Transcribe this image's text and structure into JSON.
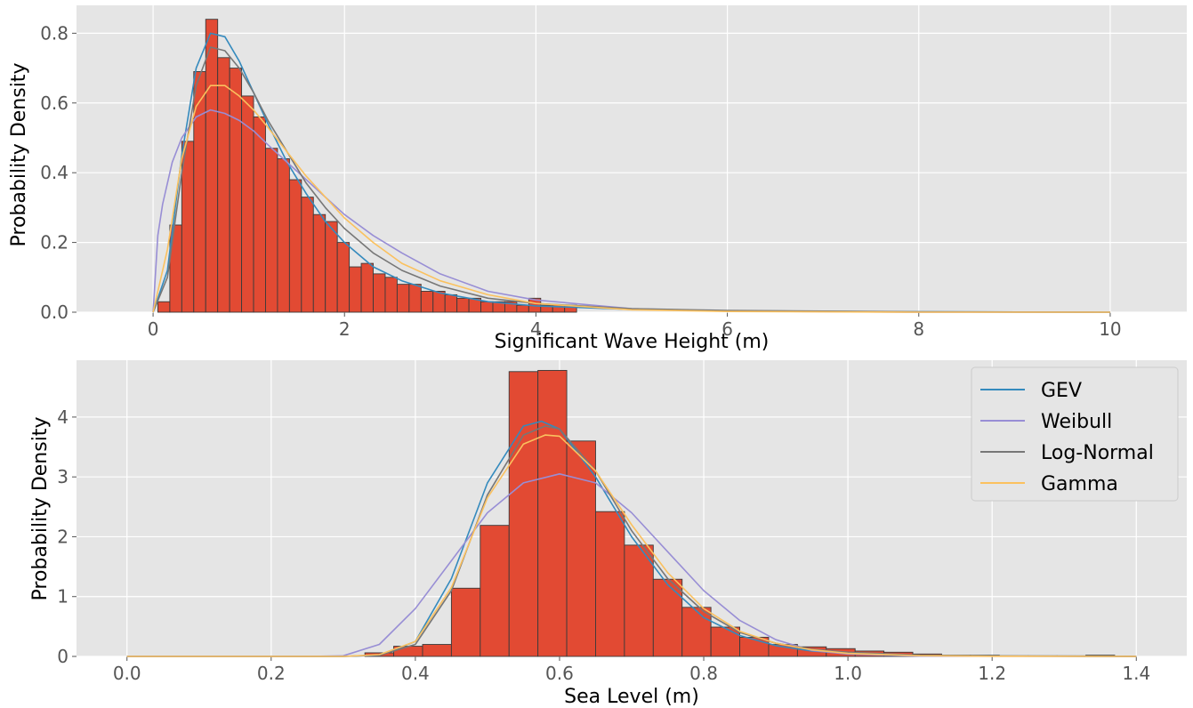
{
  "chart_data": [
    {
      "type": "histogram",
      "xlabel": "Significant Wave Height (m)",
      "ylabel": "Probability Density",
      "xlim": [
        -0.8,
        10.8
      ],
      "ylim": [
        0,
        0.88
      ],
      "x_ticks": [
        "0",
        "2",
        "4",
        "6",
        "8",
        "10"
      ],
      "y_ticks": [
        "0.0",
        "0.2",
        "0.4",
        "0.6",
        "0.8"
      ],
      "grid": true,
      "histogram": {
        "bin_edges": [
          0.05,
          0.175,
          0.3,
          0.425,
          0.55,
          0.675,
          0.8,
          0.925,
          1.05,
          1.175,
          1.3,
          1.425,
          1.55,
          1.675,
          1.8,
          1.925,
          2.05,
          2.175,
          2.3,
          2.425,
          2.55,
          2.675,
          2.8,
          2.925,
          3.05,
          3.175,
          3.3,
          3.425,
          3.55,
          3.675,
          3.8,
          3.925,
          4.05,
          4.175,
          4.3,
          4.425
        ],
        "density": [
          0.03,
          0.25,
          0.49,
          0.69,
          0.84,
          0.73,
          0.7,
          0.62,
          0.56,
          0.47,
          0.44,
          0.38,
          0.33,
          0.28,
          0.26,
          0.2,
          0.13,
          0.14,
          0.11,
          0.1,
          0.08,
          0.08,
          0.06,
          0.06,
          0.05,
          0.04,
          0.04,
          0.03,
          0.03,
          0.03,
          0.02,
          0.04,
          0.02,
          0.02,
          0.02
        ]
      },
      "series": [
        {
          "name": "GEV",
          "color": "#348ABD",
          "x": [
            0.0,
            0.15,
            0.3,
            0.45,
            0.6,
            0.75,
            0.9,
            1.05,
            1.2,
            1.4,
            1.6,
            1.8,
            2.0,
            2.3,
            2.6,
            3.0,
            3.5,
            4.0,
            5.0,
            6.0,
            8.0,
            10.0
          ],
          "y": [
            0.0,
            0.12,
            0.45,
            0.7,
            0.8,
            0.79,
            0.72,
            0.63,
            0.54,
            0.43,
            0.34,
            0.26,
            0.2,
            0.13,
            0.09,
            0.055,
            0.03,
            0.018,
            0.008,
            0.004,
            0.001,
            0.0
          ]
        },
        {
          "name": "Weibull",
          "color": "#988ED5",
          "x": [
            0.0,
            0.05,
            0.1,
            0.2,
            0.3,
            0.45,
            0.6,
            0.75,
            0.9,
            1.05,
            1.2,
            1.4,
            1.6,
            1.8,
            2.0,
            2.3,
            2.6,
            3.0,
            3.5,
            4.0,
            5.0,
            6.0,
            8.0,
            10.0
          ],
          "y": [
            0.0,
            0.22,
            0.31,
            0.43,
            0.5,
            0.56,
            0.58,
            0.57,
            0.55,
            0.52,
            0.48,
            0.43,
            0.38,
            0.33,
            0.28,
            0.22,
            0.17,
            0.11,
            0.06,
            0.035,
            0.01,
            0.003,
            0.0,
            0.0
          ]
        },
        {
          "name": "Log-Normal",
          "color": "#777777",
          "x": [
            0.0,
            0.15,
            0.3,
            0.45,
            0.6,
            0.75,
            0.9,
            1.05,
            1.2,
            1.4,
            1.6,
            1.8,
            2.0,
            2.3,
            2.6,
            3.0,
            3.5,
            4.0,
            5.0,
            6.0,
            8.0,
            10.0
          ],
          "y": [
            0.0,
            0.1,
            0.4,
            0.65,
            0.76,
            0.75,
            0.7,
            0.63,
            0.55,
            0.46,
            0.37,
            0.3,
            0.24,
            0.17,
            0.12,
            0.075,
            0.04,
            0.025,
            0.01,
            0.005,
            0.001,
            0.0
          ]
        },
        {
          "name": "Gamma",
          "color": "#FBC15E",
          "x": [
            0.0,
            0.15,
            0.3,
            0.45,
            0.6,
            0.75,
            0.9,
            1.05,
            1.2,
            1.4,
            1.6,
            1.8,
            2.0,
            2.3,
            2.6,
            3.0,
            3.5,
            4.0,
            5.0,
            6.0,
            8.0,
            10.0
          ],
          "y": [
            0.0,
            0.18,
            0.44,
            0.59,
            0.65,
            0.65,
            0.62,
            0.58,
            0.53,
            0.46,
            0.39,
            0.33,
            0.27,
            0.2,
            0.14,
            0.09,
            0.05,
            0.025,
            0.007,
            0.002,
            0.0,
            0.0
          ]
        }
      ]
    },
    {
      "type": "histogram",
      "xlabel": "Sea Level (m)",
      "ylabel": "Probability Density",
      "xlim": [
        -0.07,
        1.47
      ],
      "ylim": [
        0,
        4.95
      ],
      "x_ticks": [
        "0.0",
        "0.2",
        "0.4",
        "0.6",
        "0.8",
        "1.0",
        "1.2",
        "1.4"
      ],
      "y_ticks": [
        "0",
        "1",
        "2",
        "3",
        "4"
      ],
      "grid": true,
      "legend_position": "top-right",
      "legend": [
        "GEV",
        "Weibull",
        "Log-Normal",
        "Gamma"
      ],
      "histogram": {
        "bin_edges": [
          0.33,
          0.37,
          0.41,
          0.45,
          0.49,
          0.53,
          0.57,
          0.61,
          0.65,
          0.69,
          0.73,
          0.77,
          0.81,
          0.85,
          0.89,
          0.93,
          0.97,
          1.01,
          1.05,
          1.09,
          1.13,
          1.17,
          1.21,
          1.25,
          1.29,
          1.33,
          1.37
        ],
        "density": [
          0.06,
          0.17,
          0.2,
          1.14,
          2.19,
          4.76,
          4.78,
          3.6,
          2.42,
          1.86,
          1.29,
          0.82,
          0.49,
          0.32,
          0.2,
          0.16,
          0.13,
          0.09,
          0.07,
          0.04,
          0.02,
          0.02,
          0.01,
          0.01,
          0.01,
          0.02
        ]
      },
      "series": [
        {
          "name": "GEV",
          "color": "#348ABD",
          "x": [
            0.0,
            0.3,
            0.35,
            0.4,
            0.45,
            0.5,
            0.55,
            0.575,
            0.6,
            0.65,
            0.7,
            0.75,
            0.8,
            0.85,
            0.9,
            0.95,
            1.0,
            1.1,
            1.2,
            1.4
          ],
          "y": [
            0.0,
            0.0,
            0.02,
            0.25,
            1.3,
            2.9,
            3.85,
            3.93,
            3.8,
            3.0,
            2.0,
            1.2,
            0.65,
            0.35,
            0.18,
            0.09,
            0.05,
            0.015,
            0.005,
            0.0
          ]
        },
        {
          "name": "Weibull",
          "color": "#988ED5",
          "x": [
            0.0,
            0.25,
            0.3,
            0.35,
            0.4,
            0.45,
            0.5,
            0.55,
            0.6,
            0.65,
            0.7,
            0.75,
            0.8,
            0.85,
            0.9,
            0.95,
            1.0,
            1.1,
            1.4
          ],
          "y": [
            0.0,
            0.0,
            0.01,
            0.2,
            0.8,
            1.6,
            2.4,
            2.9,
            3.05,
            2.9,
            2.4,
            1.75,
            1.1,
            0.6,
            0.28,
            0.1,
            0.04,
            0.005,
            0.0
          ]
        },
        {
          "name": "Log-Normal",
          "color": "#777777",
          "x": [
            0.0,
            0.3,
            0.35,
            0.4,
            0.45,
            0.5,
            0.55,
            0.58,
            0.6,
            0.65,
            0.7,
            0.75,
            0.8,
            0.85,
            0.9,
            0.95,
            1.0,
            1.1,
            1.2,
            1.4
          ],
          "y": [
            0.0,
            0.0,
            0.02,
            0.2,
            1.1,
            2.7,
            3.7,
            3.85,
            3.8,
            3.1,
            2.1,
            1.3,
            0.75,
            0.4,
            0.22,
            0.12,
            0.07,
            0.02,
            0.008,
            0.0
          ]
        },
        {
          "name": "Gamma",
          "color": "#FBC15E",
          "x": [
            0.0,
            0.3,
            0.35,
            0.4,
            0.45,
            0.5,
            0.55,
            0.58,
            0.6,
            0.65,
            0.7,
            0.75,
            0.8,
            0.85,
            0.9,
            0.95,
            1.0,
            1.1,
            1.2,
            1.4
          ],
          "y": [
            0.0,
            0.0,
            0.03,
            0.25,
            1.15,
            2.65,
            3.55,
            3.7,
            3.68,
            3.1,
            2.2,
            1.4,
            0.8,
            0.42,
            0.22,
            0.11,
            0.05,
            0.012,
            0.003,
            0.0
          ]
        }
      ]
    }
  ]
}
